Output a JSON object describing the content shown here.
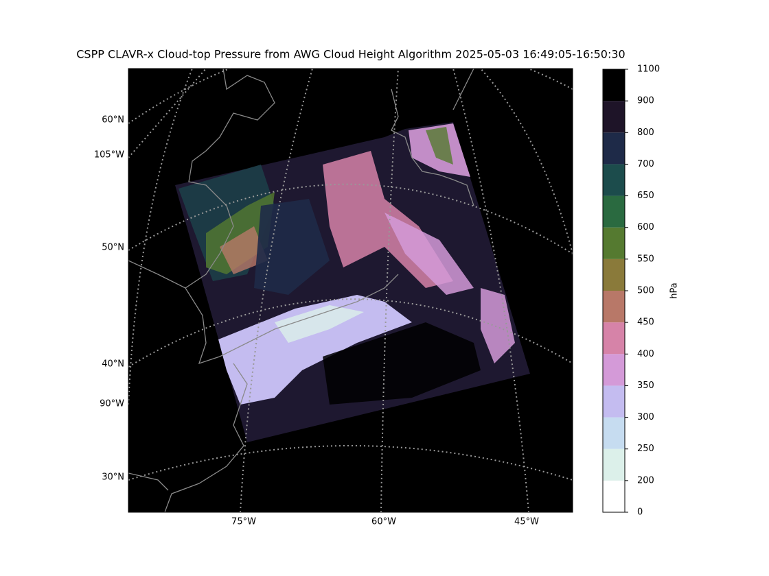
{
  "title": "CSPP CLAVR-x Cloud-top Pressure from AWG Cloud Height Algorithm 2025-05-03 16:49:05-16:50:30",
  "map": {
    "lat_labels": [
      "60°N",
      "50°N",
      "40°N",
      "30°N"
    ],
    "left_lon_labels": [
      "105°W",
      "90°W"
    ],
    "bottom_lon_labels": [
      "75°W",
      "60°W",
      "45°W"
    ]
  },
  "colorbar": {
    "label": "hPa",
    "ticks": [
      0,
      200,
      250,
      300,
      350,
      400,
      450,
      500,
      550,
      600,
      650,
      700,
      800,
      900,
      1100
    ],
    "colors": [
      "#ffffff",
      "#dcf0ea",
      "#c6dcf0",
      "#c4bcf0",
      "#d49ad8",
      "#d683a8",
      "#b87868",
      "#8a7a3a",
      "#557a30",
      "#2a6a40",
      "#1c4c4c",
      "#1e2a48",
      "#1e1428",
      "#000000"
    ]
  }
}
